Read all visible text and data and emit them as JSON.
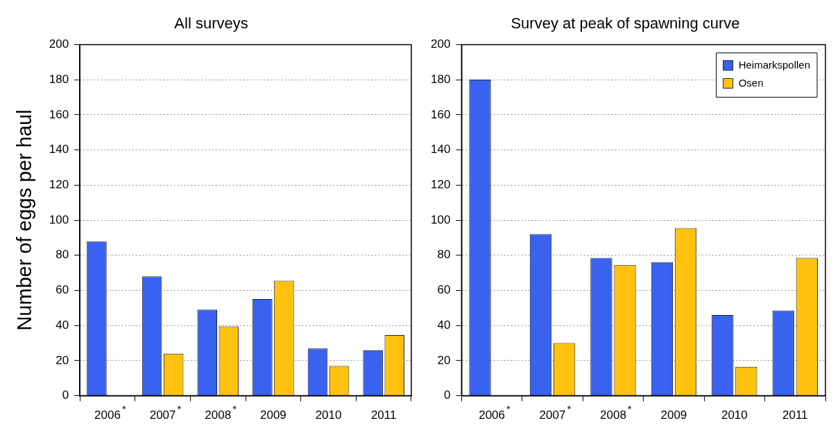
{
  "chart_data": [
    {
      "type": "bar",
      "title": "All surveys",
      "ylabel": "Number of eggs per haul",
      "categories": [
        "2006$^{*}$",
        "2007$^{*}$",
        "2008$^{*}$",
        "2009",
        "2010",
        "2011"
      ],
      "series": [
        {
          "color": "#3a62f0",
          "values": [
            88,
            68,
            49,
            55,
            27,
            26
          ]
        },
        {
          "color": "#ffc20e",
          "values": [
            null,
            24,
            39.5,
            65.5,
            17,
            34.5
          ]
        }
      ],
      "ylim": [
        0,
        200
      ],
      "yticks": [
        0,
        20,
        40,
        60,
        80,
        100,
        120,
        140,
        160,
        180,
        200
      ],
      "grid": "y",
      "legend": false
    },
    {
      "type": "bar",
      "title": "Survey at peak of spawning curve",
      "categories": [
        "2006$^{*}$",
        "2007$^{*}$",
        "2008$^{*}$",
        "2009",
        "2010",
        "2011"
      ],
      "series": [
        {
          "name": "Heimarkspollen",
          "color": "#3a62f0",
          "values": [
            180,
            92,
            78.5,
            76,
            46,
            48.5
          ]
        },
        {
          "name": "Osen",
          "color": "#ffc20e",
          "values": [
            null,
            30,
            74.5,
            95.5,
            16.5,
            78.5
          ]
        }
      ],
      "ylim": [
        0,
        200
      ],
      "yticks": [
        0,
        20,
        40,
        60,
        80,
        100,
        120,
        140,
        160,
        180,
        200
      ],
      "grid": "y",
      "legend": "top right"
    }
  ]
}
